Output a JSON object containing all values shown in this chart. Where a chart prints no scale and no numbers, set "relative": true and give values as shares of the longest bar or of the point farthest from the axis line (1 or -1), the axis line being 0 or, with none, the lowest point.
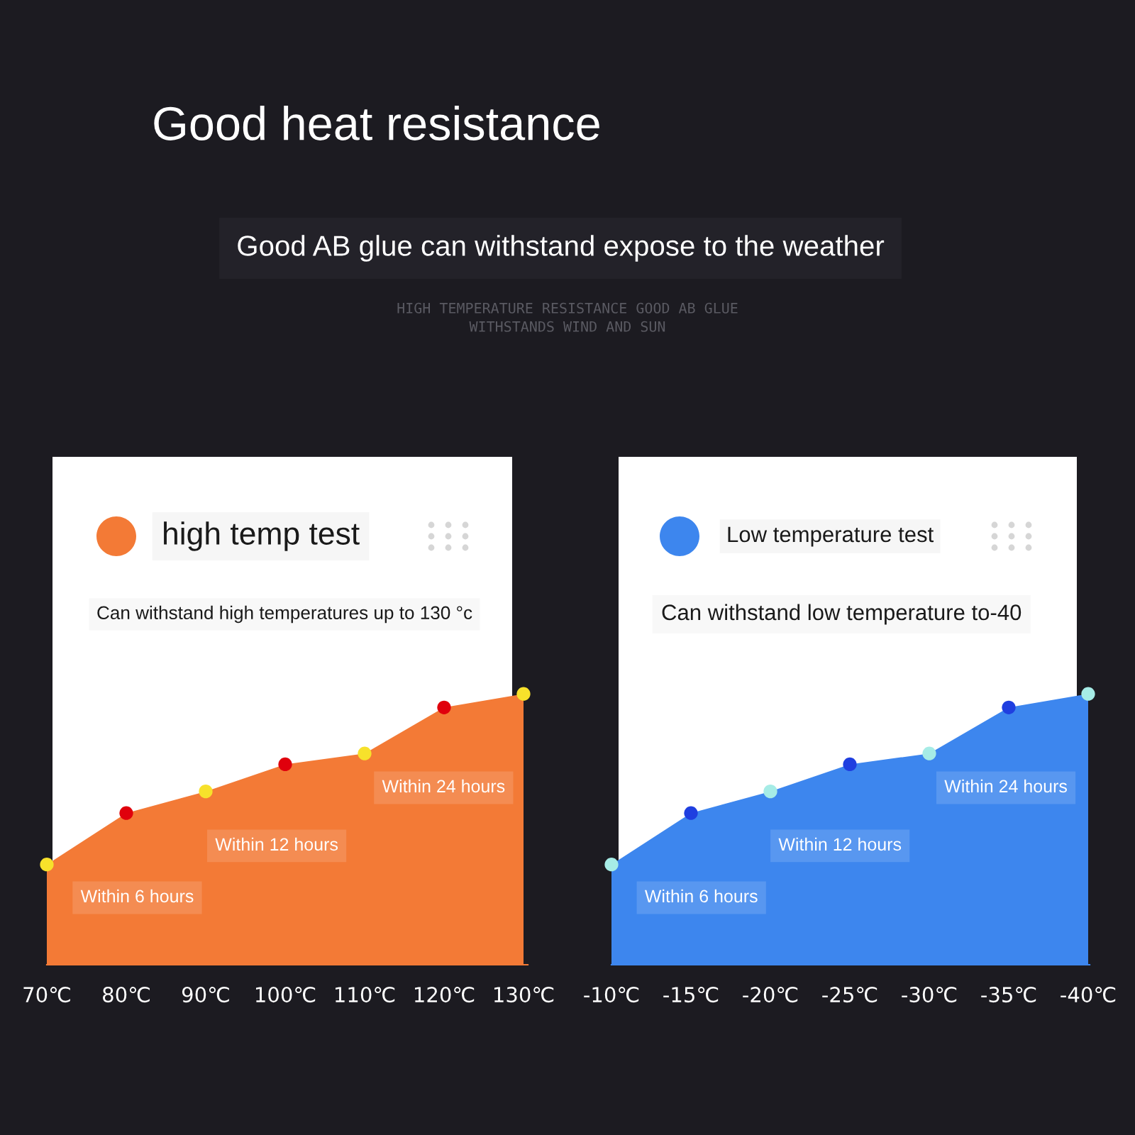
{
  "chart_data": [
    {
      "type": "other",
      "title": "Good heat resistance",
      "subtitle": "Good AB glue can withstand expose to the weather",
      "annotations": [
        "HIGH TEMPERATURE RESISTANCE GOOD AB GLUE",
        "WITHSTANDS WIND AND SUN"
      ]
    },
    {
      "type": "area",
      "title": "high temp test",
      "subtitle": "Can withstand high temperatures up to 130 °c",
      "categories": [
        "70℃",
        "80℃",
        "90℃",
        "100℃",
        "110℃",
        "120℃",
        "130℃"
      ],
      "relative": true,
      "tick_labels": "x",
      "series": [
        {
          "type": "area",
          "color": "#f37a36",
          "values": [
            0.37,
            0.56,
            0.64,
            0.74,
            0.78,
            0.95,
            1
          ]
        },
        {
          "type": "scatter",
          "marker": "circle",
          "colors": [
            "#f7e12b",
            "#e0000c",
            "#f7e12b",
            "#e0000c",
            "#f7e12b",
            "#e0000c",
            "#f7e12b"
          ],
          "values": [
            0.37,
            0.56,
            0.64,
            0.74,
            0.78,
            0.95,
            1
          ]
        }
      ],
      "annotations": [
        "Within 6 hours",
        "Within 12 hours",
        "Within 24 hours"
      ]
    },
    {
      "type": "area",
      "title": "Low temperature test",
      "subtitle": "Can withstand low temperature to-40",
      "categories": [
        "-10℃",
        "-15℃",
        "-20℃",
        "-25℃",
        "-30℃",
        "-35℃",
        "-40℃"
      ],
      "relative": true,
      "tick_labels": "x",
      "series": [
        {
          "type": "area",
          "color": "#3d86ee",
          "values": [
            0.37,
            0.56,
            0.64,
            0.74,
            0.78,
            0.95,
            1
          ]
        },
        {
          "type": "scatter",
          "marker": "circle",
          "colors": [
            "#a6ece6",
            "#1f3fe0",
            "#a6ece6",
            "#1f3fe0",
            "#a6ece6",
            "#1f3fe0",
            "#a6ece6"
          ],
          "values": [
            0.37,
            0.56,
            0.64,
            0.74,
            0.78,
            0.95,
            1
          ]
        }
      ],
      "annotations": [
        "Within 6 hours",
        "Within 12 hours",
        "Within 24 hours"
      ]
    }
  ]
}
